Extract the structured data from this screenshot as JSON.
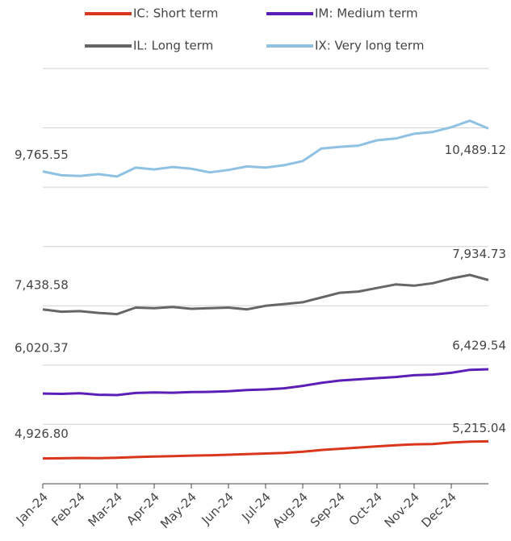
{
  "chart_data": {
    "type": "line",
    "x_labels": [
      "Jan-24",
      "Feb-24",
      "Mar-24",
      "Apr-24",
      "May-24",
      "Jun-24",
      "Jul-24",
      "Aug-24",
      "Sep-24",
      "Oct-24",
      "Nov-24",
      "Dec-24"
    ],
    "ylim": [
      4500,
      11500
    ],
    "yticks": [
      4500,
      5500,
      6500,
      7500,
      8500,
      9500,
      10500,
      11500
    ],
    "grid": true,
    "series": [
      {
        "name": "IC: Short term",
        "color": "#d9361c",
        "values": [
          4926.8,
          4930,
          4935,
          4932,
          4938,
          4950,
          4960,
          4965,
          4975,
          4980,
          4990,
          5000,
          5010,
          5020,
          5040,
          5070,
          5090,
          5110,
          5130,
          5150,
          5165,
          5170,
          5195,
          5210,
          5215.04
        ],
        "value_labels": [
          "4,926.80",
          null,
          null,
          null,
          null,
          null,
          null,
          null,
          null,
          null,
          null,
          null,
          null,
          null,
          null,
          null,
          null,
          null,
          null,
          null,
          null,
          null,
          null,
          null,
          "5,215.04"
        ]
      },
      {
        "name": "IM: Medium term",
        "color": "#5b1fb8",
        "values": [
          6020.37,
          6015,
          6025,
          6000,
          5995,
          6030,
          6040,
          6035,
          6045,
          6050,
          6060,
          6080,
          6090,
          6110,
          6150,
          6200,
          6240,
          6260,
          6280,
          6300,
          6330,
          6340,
          6370,
          6420,
          6429.54
        ],
        "value_labels": [
          "6,020.37",
          null,
          null,
          null,
          null,
          null,
          null,
          null,
          null,
          null,
          null,
          null,
          null,
          null,
          null,
          null,
          null,
          null,
          null,
          null,
          null,
          null,
          null,
          null,
          "6,429.54"
        ]
      },
      {
        "name": "IL: Long term",
        "color": "#666666",
        "values": [
          7438.58,
          7400,
          7410,
          7380,
          7360,
          7470,
          7460,
          7480,
          7450,
          7460,
          7470,
          7440,
          7500,
          7530,
          7560,
          7640,
          7720,
          7740,
          7800,
          7860,
          7840,
          7880,
          7960,
          8020,
          7934.73
        ],
        "value_labels": [
          "7,438.58",
          null,
          null,
          null,
          null,
          null,
          null,
          null,
          null,
          null,
          null,
          null,
          null,
          null,
          null,
          null,
          null,
          null,
          null,
          null,
          null,
          null,
          null,
          null,
          "7,934.73"
        ]
      },
      {
        "name": "IX: Very long term",
        "color": "#8fc1e3",
        "values": [
          9765.55,
          9700,
          9690,
          9720,
          9680,
          9830,
          9800,
          9840,
          9810,
          9750,
          9790,
          9850,
          9830,
          9870,
          9940,
          10150,
          10180,
          10200,
          10290,
          10320,
          10400,
          10430,
          10510,
          10620,
          10489.12
        ],
        "value_labels": [
          "9,765.55",
          null,
          null,
          null,
          null,
          null,
          null,
          null,
          null,
          null,
          null,
          null,
          null,
          null,
          null,
          null,
          null,
          null,
          null,
          null,
          null,
          null,
          null,
          null,
          "10,489.12"
        ]
      }
    ]
  }
}
